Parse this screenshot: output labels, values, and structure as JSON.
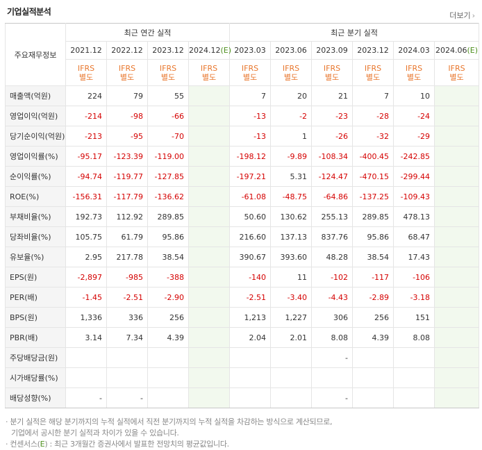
{
  "header": {
    "title": "기업실적분석",
    "more_label": "더보기",
    "more_arrow": "›"
  },
  "table": {
    "corner_label": "주요재무정보",
    "group_annual": "최근 연간 실적",
    "group_quarterly": "최근 분기 실적",
    "periods": [
      "2021.12",
      "2022.12",
      "2023.12",
      "2024.12",
      "2023.03",
      "2023.06",
      "2023.09",
      "2023.12",
      "2024.03",
      "2024.06"
    ],
    "est_suffix": "(E)",
    "ifrs_top": "IFRS",
    "ifrs_bottom": "별도",
    "rows": [
      {
        "label": "매출액(억원)",
        "values": [
          "224",
          "79",
          "55",
          "",
          "7",
          "20",
          "21",
          "7",
          "10",
          ""
        ]
      },
      {
        "label": "영업이익(억원)",
        "values": [
          "-214",
          "-98",
          "-66",
          "",
          "-13",
          "-2",
          "-23",
          "-28",
          "-24",
          ""
        ]
      },
      {
        "label": "당기순이익(억원)",
        "values": [
          "-213",
          "-95",
          "-70",
          "",
          "-13",
          "1",
          "-26",
          "-32",
          "-29",
          ""
        ]
      },
      {
        "label": "영업이익률(%)",
        "values": [
          "-95.17",
          "-123.39",
          "-119.00",
          "",
          "-198.12",
          "-9.89",
          "-108.34",
          "-400.45",
          "-242.85",
          ""
        ]
      },
      {
        "label": "순이익률(%)",
        "values": [
          "-94.74",
          "-119.77",
          "-127.85",
          "",
          "-197.21",
          "5.31",
          "-124.47",
          "-470.15",
          "-299.44",
          ""
        ]
      },
      {
        "label": "ROE(%)",
        "values": [
          "-156.31",
          "-117.79",
          "-136.62",
          "",
          "-61.08",
          "-48.75",
          "-64.86",
          "-137.25",
          "-109.43",
          ""
        ]
      },
      {
        "label": "부채비율(%)",
        "values": [
          "192.73",
          "112.92",
          "289.85",
          "",
          "50.60",
          "130.62",
          "255.13",
          "289.85",
          "478.13",
          ""
        ]
      },
      {
        "label": "당좌비율(%)",
        "values": [
          "105.75",
          "61.79",
          "95.86",
          "",
          "216.60",
          "137.13",
          "837.76",
          "95.86",
          "68.47",
          ""
        ]
      },
      {
        "label": "유보율(%)",
        "values": [
          "2.95",
          "217.78",
          "38.54",
          "",
          "390.67",
          "393.60",
          "48.28",
          "38.54",
          "17.43",
          ""
        ]
      },
      {
        "label": "EPS(원)",
        "values": [
          "-2,897",
          "-985",
          "-388",
          "",
          "-140",
          "11",
          "-102",
          "-117",
          "-106",
          ""
        ]
      },
      {
        "label": "PER(배)",
        "values": [
          "-1.45",
          "-2.51",
          "-2.90",
          "",
          "-2.51",
          "-3.40",
          "-4.43",
          "-2.89",
          "-3.18",
          ""
        ]
      },
      {
        "label": "BPS(원)",
        "values": [
          "1,336",
          "336",
          "256",
          "",
          "1,213",
          "1,227",
          "306",
          "256",
          "151",
          ""
        ]
      },
      {
        "label": "PBR(배)",
        "values": [
          "3.14",
          "7.34",
          "4.39",
          "",
          "2.04",
          "2.01",
          "8.08",
          "4.39",
          "8.08",
          ""
        ]
      },
      {
        "label": "주당배당금(원)",
        "values": [
          "",
          "",
          "",
          "",
          "",
          "",
          "-",
          "",
          "",
          ""
        ]
      },
      {
        "label": "시가배당률(%)",
        "values": [
          "",
          "",
          "",
          "",
          "",
          "",
          "",
          "",
          "",
          ""
        ]
      },
      {
        "label": "배당성향(%)",
        "values": [
          "-",
          "-",
          "",
          "",
          "",
          "",
          "-",
          "",
          "",
          ""
        ]
      }
    ]
  },
  "notes": {
    "line1": "· 분기 실적은 해당 분기까지의 누적 실적에서 직전 분기까지의 누적 실적을 차감하는 방식으로 계산되므로,",
    "line2": "기업에서 공시한 분기 실적과 차이가 있을 수 있습니다.",
    "line3_prefix": "· 컨센서스(",
    "line3_e": "E",
    "line3_suffix": ") : 최근 3개월간 증권사에서 발표한 전망치의 평균값입니다."
  },
  "colors": {
    "ifrs": "#e8762c",
    "negative": "#d50000",
    "estimate_bg": "#f2f9ee",
    "estimate_text": "#4d8f1d",
    "label_bg": "#f5f5f5"
  }
}
